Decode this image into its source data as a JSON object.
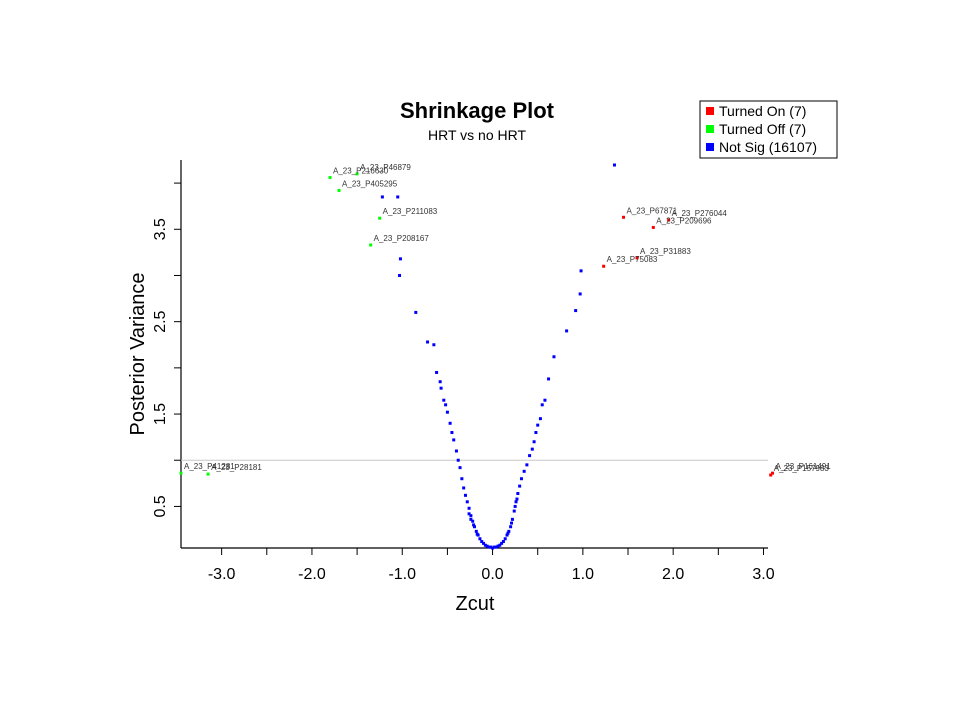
{
  "chart_data": {
    "type": "scatter",
    "title": "Shrinkage Plot",
    "subtitle": "HRT  vs  no HRT",
    "xlabel": "Zcut",
    "ylabel": "Posterior Variance",
    "xlim": [
      -3.45,
      3.05
    ],
    "ylim": [
      0.05,
      4.25
    ],
    "x_ticks": [
      -3.0,
      -2.5,
      -2.0,
      -1.5,
      -1.0,
      -0.5,
      0.0,
      0.5,
      1.0,
      1.5,
      2.0,
      2.5,
      3.0
    ],
    "x_tick_labels": [
      "-3.0",
      "",
      "-2.0",
      "",
      "-1.0",
      "",
      "0.0",
      "",
      "1.0",
      "",
      "2.0",
      "",
      "3.0"
    ],
    "y_ticks": [
      0.5,
      1.0,
      1.5,
      2.0,
      2.5,
      3.0,
      3.5,
      4.0
    ],
    "y_tick_labels": [
      "0.5",
      "",
      "1.5",
      "",
      "2.5",
      "",
      "3.5",
      ""
    ],
    "reference_line_y": 1.0,
    "grid": false,
    "legend_position": "top-right",
    "legend": [
      {
        "label": "Turned On (7)",
        "color": "#ff0000"
      },
      {
        "label": "Turned Off (7)",
        "color": "#00ff00"
      },
      {
        "label": "Not Sig (16107)",
        "color": "#0000ff"
      }
    ],
    "series": [
      {
        "name": "Turned On (7)",
        "color": "#ff0000",
        "points": [
          {
            "x": 1.45,
            "y": 3.63,
            "label": "A_23_P67871"
          },
          {
            "x": 1.78,
            "y": 3.52,
            "label": "A_23_P209696"
          },
          {
            "x": 1.95,
            "y": 3.6,
            "label": "A_23_P276044"
          },
          {
            "x": 1.6,
            "y": 3.19,
            "label": "A_23_P31883"
          },
          {
            "x": 1.23,
            "y": 3.1,
            "label": "A_23_P75083"
          },
          {
            "x": 3.08,
            "y": 0.84,
            "label": "A_23_P157983"
          },
          {
            "x": 3.1,
            "y": 0.86,
            "label": "A_23_P161491"
          }
        ]
      },
      {
        "name": "Turned Off (7)",
        "color": "#00ff00",
        "points": [
          {
            "x": -1.8,
            "y": 4.06,
            "label": "A_23_P216630"
          },
          {
            "x": -1.5,
            "y": 4.1,
            "label": "A_23_P46879"
          },
          {
            "x": -1.7,
            "y": 3.92,
            "label": "A_23_P405295"
          },
          {
            "x": -1.25,
            "y": 3.62,
            "label": "A_23_P211083"
          },
          {
            "x": -1.35,
            "y": 3.33,
            "label": "A_23_P208167"
          },
          {
            "x": -3.45,
            "y": 0.86,
            "label": "A_23_P41281"
          },
          {
            "x": -3.15,
            "y": 0.85,
            "label": "A_23_P28181"
          }
        ]
      },
      {
        "name": "Not Sig (16107)",
        "color": "#0000ff",
        "points": [
          [
            1.35,
            4.35
          ],
          [
            -1.22,
            3.85
          ],
          [
            -1.05,
            3.85
          ],
          [
            -1.02,
            3.18
          ],
          [
            -1.03,
            3.0
          ],
          [
            -0.85,
            2.6
          ],
          [
            -0.72,
            2.28
          ],
          [
            -0.65,
            2.25
          ],
          [
            -0.62,
            1.95
          ],
          [
            -0.58,
            1.85
          ],
          [
            -0.57,
            1.78
          ],
          [
            -0.54,
            1.65
          ],
          [
            -0.52,
            1.6
          ],
          [
            -0.5,
            1.52
          ],
          [
            -0.47,
            1.4
          ],
          [
            -0.45,
            1.3
          ],
          [
            -0.43,
            1.22
          ],
          [
            -0.4,
            1.1
          ],
          [
            -0.38,
            1.0
          ],
          [
            -0.36,
            0.92
          ],
          [
            -0.34,
            0.8
          ],
          [
            -0.32,
            0.7
          ],
          [
            -0.3,
            0.62
          ],
          [
            -0.28,
            0.55
          ],
          [
            -0.26,
            0.48
          ],
          [
            -0.24,
            0.4
          ],
          [
            -0.22,
            0.34
          ],
          [
            -0.2,
            0.28
          ],
          [
            -0.18,
            0.23
          ],
          [
            -0.16,
            0.19
          ],
          [
            -0.14,
            0.15
          ],
          [
            -0.12,
            0.12
          ],
          [
            -0.1,
            0.1
          ],
          [
            -0.08,
            0.08
          ],
          [
            -0.06,
            0.07
          ],
          [
            -0.04,
            0.06
          ],
          [
            -0.02,
            0.06
          ],
          [
            0.0,
            0.05
          ],
          [
            0.02,
            0.06
          ],
          [
            0.04,
            0.06
          ],
          [
            0.06,
            0.07
          ],
          [
            0.08,
            0.08
          ],
          [
            0.1,
            0.1
          ],
          [
            0.12,
            0.12
          ],
          [
            0.14,
            0.15
          ],
          [
            0.16,
            0.19
          ],
          [
            0.18,
            0.23
          ],
          [
            0.2,
            0.28
          ],
          [
            0.22,
            0.36
          ],
          [
            0.24,
            0.45
          ],
          [
            0.26,
            0.55
          ],
          [
            0.28,
            0.64
          ],
          [
            0.3,
            0.72
          ],
          [
            0.32,
            0.8
          ],
          [
            0.35,
            0.88
          ],
          [
            0.38,
            0.95
          ],
          [
            0.41,
            1.05
          ],
          [
            0.44,
            1.12
          ],
          [
            0.46,
            1.2
          ],
          [
            0.48,
            1.3
          ],
          [
            0.5,
            1.38
          ],
          [
            0.53,
            1.45
          ],
          [
            0.55,
            1.6
          ],
          [
            0.58,
            1.65
          ],
          [
            0.62,
            1.88
          ],
          [
            0.68,
            2.12
          ],
          [
            0.82,
            2.4
          ],
          [
            0.92,
            2.62
          ],
          [
            0.97,
            2.8
          ],
          [
            0.98,
            3.05
          ],
          [
            -0.26,
            0.42
          ],
          [
            -0.24,
            0.36
          ],
          [
            0.27,
            0.58
          ],
          [
            0.25,
            0.5
          ],
          [
            -0.21,
            0.3
          ],
          [
            0.21,
            0.32
          ],
          [
            -0.17,
            0.2
          ],
          [
            0.17,
            0.21
          ]
        ]
      }
    ]
  }
}
